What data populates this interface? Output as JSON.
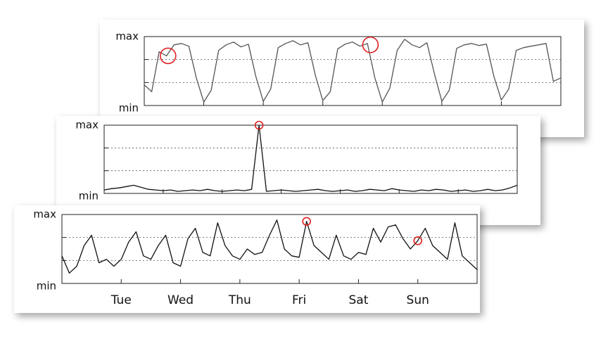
{
  "chart_data": [
    {
      "type": "line",
      "color": "#555555",
      "xlim": [
        0,
        7
      ],
      "ylim": [
        0,
        100
      ],
      "yticks": [
        {
          "value": 0,
          "label": "min"
        },
        {
          "value": 100,
          "label": "max"
        }
      ],
      "gridlines": [
        33.3,
        66.7
      ],
      "day_marks": [
        1,
        2,
        3,
        4,
        5,
        6
      ],
      "x": [
        0,
        0.125,
        0.25,
        0.375,
        0.5,
        0.625,
        0.75,
        0.875,
        1,
        1.125,
        1.25,
        1.375,
        1.5,
        1.625,
        1.75,
        1.875,
        2,
        2.125,
        2.25,
        2.375,
        2.5,
        2.625,
        2.75,
        2.875,
        3,
        3.125,
        3.25,
        3.375,
        3.5,
        3.625,
        3.75,
        3.875,
        4,
        4.125,
        4.25,
        4.375,
        4.5,
        4.625,
        4.75,
        4.875,
        5,
        5.125,
        5.25,
        5.375,
        5.5,
        5.625,
        5.75,
        5.875,
        6,
        6.125,
        6.25,
        6.375,
        6.5,
        6.625,
        6.75,
        6.875,
        7
      ],
      "values": [
        30,
        20,
        78,
        72,
        88,
        90,
        86,
        40,
        5,
        22,
        80,
        88,
        92,
        85,
        89,
        42,
        6,
        24,
        84,
        90,
        94,
        88,
        91,
        44,
        7,
        20,
        82,
        89,
        92,
        86,
        90,
        40,
        5,
        25,
        80,
        96,
        88,
        84,
        91,
        46,
        6,
        22,
        83,
        88,
        90,
        87,
        89,
        42,
        8,
        24,
        80,
        84,
        86,
        88,
        90,
        35,
        40
      ],
      "highlights": [
        {
          "x": 0.4,
          "y": 72
        },
        {
          "x": 3.8,
          "y": 88
        }
      ]
    },
    {
      "type": "line",
      "color": "#111111",
      "xlim": [
        0,
        7
      ],
      "ylim": [
        0,
        100
      ],
      "yticks": [
        {
          "value": 0,
          "label": "min"
        },
        {
          "value": 100,
          "label": "max"
        }
      ],
      "gridlines": [
        33.3,
        66.7
      ],
      "day_marks": [
        1,
        2,
        3,
        4,
        5,
        6
      ],
      "x": [
        0,
        0.125,
        0.25,
        0.375,
        0.5,
        0.625,
        0.75,
        0.875,
        1,
        1.125,
        1.25,
        1.375,
        1.5,
        1.625,
        1.75,
        1.875,
        2,
        2.125,
        2.25,
        2.375,
        2.5,
        2.625,
        2.75,
        2.875,
        3,
        3.125,
        3.25,
        3.375,
        3.5,
        3.625,
        3.75,
        3.875,
        4,
        4.125,
        4.25,
        4.375,
        4.5,
        4.625,
        4.75,
        4.875,
        5,
        5.125,
        5.25,
        5.375,
        5.5,
        5.625,
        5.75,
        5.875,
        6,
        6.125,
        6.25,
        6.375,
        6.5,
        6.625,
        6.75,
        6.875,
        7
      ],
      "values": [
        5,
        7,
        8,
        10,
        12,
        9,
        6,
        5,
        4,
        5,
        3,
        4,
        5,
        4,
        6,
        4,
        3,
        4,
        5,
        4,
        6,
        100,
        3,
        4,
        5,
        4,
        3,
        4,
        5,
        6,
        4,
        3,
        4,
        5,
        3,
        4,
        6,
        5,
        4,
        7,
        5,
        4,
        3,
        5,
        4,
        6,
        5,
        3,
        4,
        5,
        3,
        4,
        6,
        4,
        5,
        8,
        12
      ],
      "highlights": [
        {
          "x": 2.625,
          "y": 100
        }
      ]
    },
    {
      "type": "line",
      "color": "#111111",
      "xlim": [
        0,
        7
      ],
      "ylim": [
        0,
        100
      ],
      "yticks": [
        {
          "value": 0,
          "label": "min"
        },
        {
          "value": 100,
          "label": "max"
        }
      ],
      "gridlines": [
        33.3,
        66.7
      ],
      "day_marks": [
        1,
        2,
        3,
        4,
        5,
        6
      ],
      "xticks": [
        {
          "value": 1,
          "label": "Tue"
        },
        {
          "value": 2,
          "label": "Wed"
        },
        {
          "value": 3,
          "label": "Thu"
        },
        {
          "value": 4,
          "label": "Fri"
        },
        {
          "value": 5,
          "label": "Sat"
        },
        {
          "value": 6,
          "label": "Sun"
        }
      ],
      "x": [
        0,
        0.125,
        0.25,
        0.375,
        0.5,
        0.625,
        0.75,
        0.875,
        1,
        1.125,
        1.25,
        1.375,
        1.5,
        1.625,
        1.75,
        1.875,
        2,
        2.125,
        2.25,
        2.375,
        2.5,
        2.625,
        2.75,
        2.875,
        3,
        3.125,
        3.25,
        3.375,
        3.5,
        3.625,
        3.75,
        3.875,
        4,
        4.125,
        4.25,
        4.375,
        4.5,
        4.625,
        4.75,
        4.875,
        5,
        5.125,
        5.25,
        5.375,
        5.5,
        5.625,
        5.75,
        5.875,
        6,
        6.125,
        6.25,
        6.375,
        6.5,
        6.625,
        6.75,
        6.875,
        7
      ],
      "values": [
        40,
        15,
        25,
        55,
        70,
        30,
        35,
        25,
        35,
        60,
        75,
        40,
        35,
        55,
        70,
        30,
        25,
        65,
        80,
        45,
        40,
        88,
        55,
        40,
        35,
        50,
        42,
        45,
        70,
        92,
        50,
        40,
        38,
        90,
        55,
        45,
        35,
        70,
        40,
        35,
        45,
        42,
        80,
        60,
        82,
        85,
        65,
        50,
        62,
        80,
        55,
        45,
        35,
        88,
        40,
        30,
        20
      ],
      "highlights": [
        {
          "x": 4.125,
          "y": 90
        },
        {
          "x": 6,
          "y": 62
        }
      ]
    }
  ]
}
